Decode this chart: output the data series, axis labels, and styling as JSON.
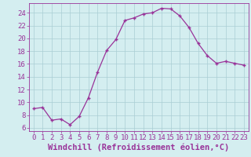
{
  "x": [
    0,
    1,
    2,
    3,
    4,
    5,
    6,
    7,
    8,
    9,
    10,
    11,
    12,
    13,
    14,
    15,
    16,
    17,
    18,
    19,
    20,
    21,
    22,
    23
  ],
  "y": [
    9.0,
    9.2,
    7.2,
    7.4,
    6.5,
    7.8,
    10.7,
    14.7,
    18.1,
    19.8,
    22.8,
    23.2,
    23.8,
    24.0,
    24.7,
    24.6,
    23.5,
    21.7,
    19.2,
    17.3,
    16.1,
    16.4,
    16.1,
    15.8
  ],
  "line_color": "#993399",
  "marker": "+",
  "xlabel": "Windchill (Refroidissement éolien,°C)",
  "xlim": [
    -0.5,
    23.5
  ],
  "ylim": [
    5.5,
    25.5
  ],
  "yticks": [
    6,
    8,
    10,
    12,
    14,
    16,
    18,
    20,
    22,
    24
  ],
  "xticks": [
    0,
    1,
    2,
    3,
    4,
    5,
    6,
    7,
    8,
    9,
    10,
    11,
    12,
    13,
    14,
    15,
    16,
    17,
    18,
    19,
    20,
    21,
    22,
    23
  ],
  "background_color": "#d4eef0",
  "grid_color": "#aacdd4",
  "font_color": "#993399",
  "tick_fontsize": 6.5,
  "xlabel_fontsize": 7.5
}
